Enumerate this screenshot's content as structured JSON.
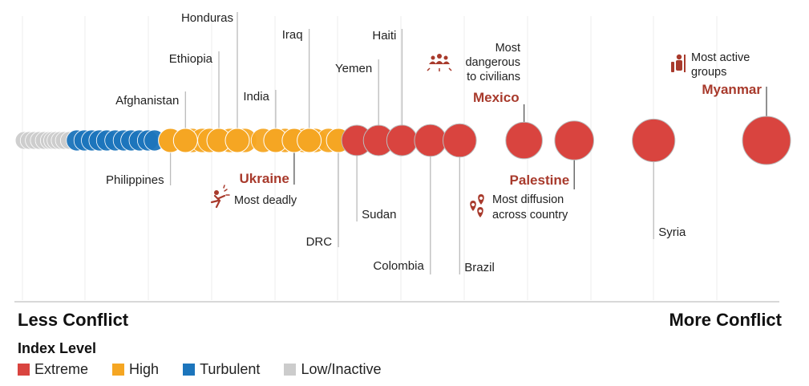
{
  "chart_data": {
    "type": "scatter",
    "title": "",
    "xlabel": "",
    "ylabel": "",
    "axis": {
      "left_label": "Less Conflict",
      "right_label": "More Conflict"
    },
    "legend": {
      "title": "Index Level",
      "placement": "bottom-left",
      "entries": [
        {
          "name": "Extreme",
          "color": "#d9443f"
        },
        {
          "name": "High",
          "color": "#f5a623"
        },
        {
          "name": "Turbulent",
          "color": "#1c75bc"
        },
        {
          "name": "Low/Inactive",
          "color": "#cccccc"
        }
      ]
    },
    "colors": {
      "Extreme": "#d9443f",
      "High": "#f5a623",
      "Turbulent": "#1c75bc",
      "Low/Inactive": "#cccccc",
      "highlight_text": "#a83a2c"
    },
    "unlabeled_points": [
      {
        "level": "Low/Inactive",
        "score": 0.2
      },
      {
        "level": "Low/Inactive",
        "score": 0.8
      },
      {
        "level": "Low/Inactive",
        "score": 1.4
      },
      {
        "level": "Low/Inactive",
        "score": 2.0
      },
      {
        "level": "Low/Inactive",
        "score": 2.6
      },
      {
        "level": "Low/Inactive",
        "score": 3.2
      },
      {
        "level": "Low/Inactive",
        "score": 3.6
      },
      {
        "level": "Low/Inactive",
        "score": 4.0
      },
      {
        "level": "Low/Inactive",
        "score": 4.5
      },
      {
        "level": "Low/Inactive",
        "score": 5.0
      },
      {
        "level": "Low/Inactive",
        "score": 5.6
      },
      {
        "level": "Turbulent",
        "score": 6.5
      },
      {
        "level": "Turbulent",
        "score": 7.4
      },
      {
        "level": "Turbulent",
        "score": 8.3
      },
      {
        "level": "Turbulent",
        "score": 9.2
      },
      {
        "level": "Turbulent",
        "score": 10.1
      },
      {
        "level": "Turbulent",
        "score": 11.1
      },
      {
        "level": "Turbulent",
        "score": 12.1
      },
      {
        "level": "Turbulent",
        "score": 13.0
      },
      {
        "level": "Turbulent",
        "score": 14.0
      },
      {
        "level": "Turbulent",
        "score": 15.0
      },
      {
        "level": "Turbulent",
        "score": 15.8
      },
      {
        "level": "High",
        "score": 20.3
      },
      {
        "level": "High",
        "score": 21.5
      },
      {
        "level": "High",
        "score": 22.4
      },
      {
        "level": "High",
        "score": 24.8
      },
      {
        "level": "High",
        "score": 26.6
      },
      {
        "level": "High",
        "score": 28.8
      },
      {
        "level": "High",
        "score": 31.4
      },
      {
        "level": "High",
        "score": 33.6
      },
      {
        "level": "High",
        "score": 35.0
      },
      {
        "level": "High",
        "score": 36.6
      }
    ],
    "points": [
      {
        "name": "Philippines",
        "level": "High",
        "score": 17.7
      },
      {
        "name": "Afghanistan",
        "level": "High",
        "score": 19.5
      },
      {
        "name": "Ethiopia",
        "level": "High",
        "score": 23.5
      },
      {
        "name": "Honduras",
        "level": "High",
        "score": 25.7
      },
      {
        "name": "India",
        "level": "High",
        "score": 30.3
      },
      {
        "name": "Ukraine",
        "level": "High",
        "score": 32.5
      },
      {
        "name": "Iraq",
        "level": "High",
        "score": 34.3
      },
      {
        "name": "DRC",
        "level": "High",
        "score": 37.8
      },
      {
        "name": "Sudan",
        "level": "Extreme",
        "score": 40.0
      },
      {
        "name": "Yemen",
        "level": "Extreme",
        "score": 42.6
      },
      {
        "name": "Haiti",
        "level": "Extreme",
        "score": 45.4
      },
      {
        "name": "Colombia",
        "level": "Extreme",
        "score": 48.8
      },
      {
        "name": "Brazil",
        "level": "Extreme",
        "score": 52.3
      },
      {
        "name": "Mexico",
        "level": "Extreme",
        "score": 60.0,
        "highlight": true,
        "annotation": "Most dangerous to civilians"
      },
      {
        "name": "Palestine",
        "level": "Extreme",
        "score": 66.0,
        "highlight": true,
        "annotation": "Most diffusion across country"
      },
      {
        "name": "Syria",
        "level": "Extreme",
        "score": 75.5
      },
      {
        "name": "Myanmar",
        "level": "Extreme",
        "score": 89.0,
        "highlight": true,
        "annotation": "Most active groups"
      }
    ],
    "annotations": [
      {
        "country": "Mexico",
        "icon": "people-group-icon",
        "lines": [
          "Most",
          "dangerous",
          "to civilians"
        ]
      },
      {
        "country": "Myanmar",
        "icon": "armed-group-icon",
        "lines": [
          "Most active",
          "groups"
        ]
      },
      {
        "country": "Ukraine",
        "icon": "explosion-icon",
        "lines": [
          "Most deadly"
        ]
      },
      {
        "country": "Palestine",
        "icon": "map-pins-icon",
        "lines": [
          "Most diffusion",
          "across country"
        ]
      }
    ]
  }
}
